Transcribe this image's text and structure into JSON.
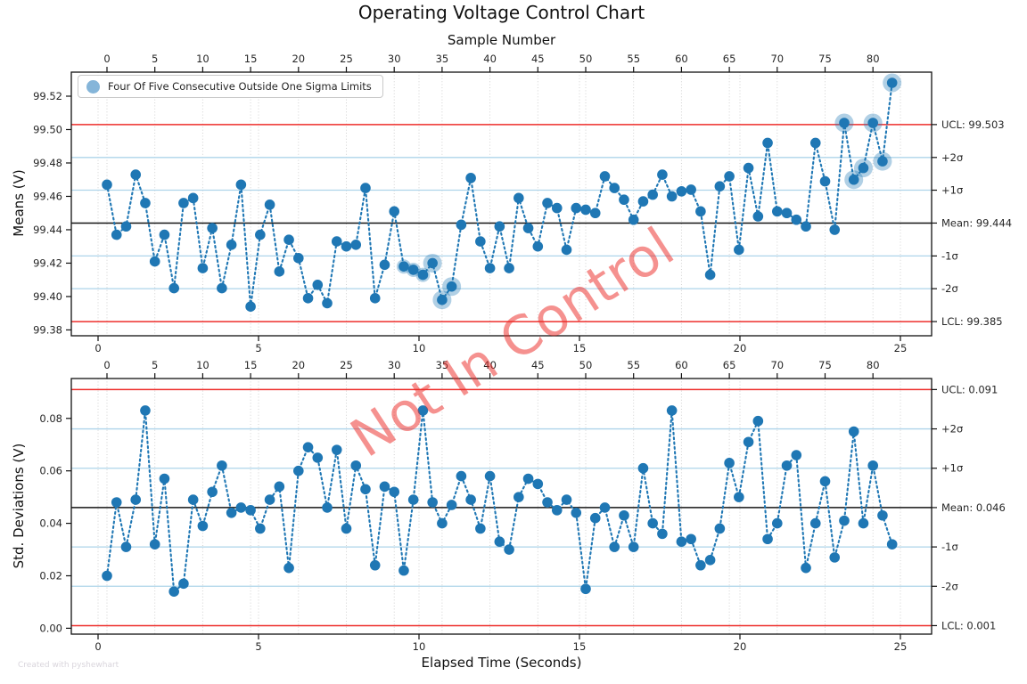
{
  "title": "Operating Voltage Control Chart",
  "top_axis_label": "Sample Number",
  "bottom_axis_label": "Elapsed Time (Seconds)",
  "watermark_text": "Not In Control",
  "credit_text": "Created with pyshewhart",
  "legend_label": "Four Of Five Consecutive Outside One Sigma Limits",
  "colors": {
    "marker": "#1f77b4",
    "halo": "rgba(31,119,180,0.35)",
    "control_line": "#ee2e2b",
    "sigma_line": "#aed4ea",
    "mean_line": "#141414",
    "grid_line": "#cdcdcd",
    "watermark": "rgba(235,45,40,0.52)",
    "legend_swatch": "#85b5d9"
  },
  "axes": {
    "sample_ticks": [
      0,
      5,
      10,
      15,
      20,
      25,
      30,
      35,
      40,
      45,
      50,
      55,
      60,
      65,
      70,
      75,
      80
    ],
    "time_ticks": [
      0,
      5,
      10,
      15,
      20,
      25
    ]
  },
  "chart_data": [
    {
      "type": "line",
      "name": "means",
      "ylabel": "Means (V)",
      "ylim": [
        99.3765,
        99.5344
      ],
      "yticks": [
        {
          "v": 99.38,
          "label": "99.38"
        },
        {
          "v": 99.4,
          "label": "99.40"
        },
        {
          "v": 99.42,
          "label": "99.42"
        },
        {
          "v": 99.44,
          "label": "99.44"
        },
        {
          "v": 99.46,
          "label": "99.46"
        },
        {
          "v": 99.48,
          "label": "99.48"
        },
        {
          "v": 99.5,
          "label": "99.50"
        },
        {
          "v": 99.52,
          "label": "99.52"
        }
      ],
      "lines": [
        {
          "label": "UCL: 99.503",
          "value": 99.503,
          "kind": "control"
        },
        {
          "label": "+2σ",
          "value": 99.4833,
          "kind": "sigma"
        },
        {
          "label": "+1σ",
          "value": 99.4637,
          "kind": "sigma"
        },
        {
          "label": "Mean: 99.444",
          "value": 99.444,
          "kind": "mean"
        },
        {
          "label": "-1σ",
          "value": 99.4243,
          "kind": "sigma"
        },
        {
          "label": "-2σ",
          "value": 99.4047,
          "kind": "sigma"
        },
        {
          "label": "LCL: 99.385",
          "value": 99.385,
          "kind": "control"
        }
      ],
      "values": [
        99.467,
        99.437,
        99.442,
        99.473,
        99.456,
        99.421,
        99.437,
        99.405,
        99.456,
        99.459,
        99.417,
        99.441,
        99.405,
        99.431,
        99.467,
        99.394,
        99.437,
        99.455,
        99.415,
        99.434,
        99.423,
        99.399,
        99.407,
        99.396,
        99.433,
        99.43,
        99.431,
        99.465,
        99.399,
        99.419,
        99.451,
        99.418,
        99.416,
        99.413,
        99.42,
        99.398,
        99.406,
        99.443,
        99.471,
        99.433,
        99.417,
        99.442,
        99.417,
        99.459,
        99.441,
        99.43,
        99.456,
        99.453,
        99.428,
        99.453,
        99.452,
        99.45,
        99.472,
        99.465,
        99.458,
        99.446,
        99.457,
        99.461,
        99.473,
        99.46,
        99.463,
        99.464,
        99.451,
        99.413,
        99.466,
        99.472,
        99.428,
        99.477,
        99.448,
        99.492,
        99.451,
        99.45,
        99.446,
        99.442,
        99.492,
        99.469,
        99.44,
        99.504,
        99.47,
        99.477,
        99.504,
        99.481,
        99.528
      ],
      "violations_small": [
        31,
        32,
        33
      ],
      "violations_large": [
        34,
        35,
        36,
        77,
        78,
        79,
        80,
        81,
        82
      ]
    },
    {
      "type": "line",
      "name": "std-deviations",
      "ylabel": "Std. Deviations (V)",
      "ylim": [
        -0.00224,
        0.0952
      ],
      "yticks": [
        {
          "v": 0.0,
          "label": "0.00"
        },
        {
          "v": 0.02,
          "label": "0.02"
        },
        {
          "v": 0.04,
          "label": "0.04"
        },
        {
          "v": 0.06,
          "label": "0.06"
        },
        {
          "v": 0.08,
          "label": "0.08"
        }
      ],
      "lines": [
        {
          "label": "UCL: 0.091",
          "value": 0.091,
          "kind": "control"
        },
        {
          "label": "+2σ",
          "value": 0.076,
          "kind": "sigma"
        },
        {
          "label": "+1σ",
          "value": 0.061,
          "kind": "sigma"
        },
        {
          "label": "Mean: 0.046",
          "value": 0.046,
          "kind": "mean"
        },
        {
          "label": "-1σ",
          "value": 0.031,
          "kind": "sigma"
        },
        {
          "label": "-2σ",
          "value": 0.016,
          "kind": "sigma"
        },
        {
          "label": "LCL: 0.001",
          "value": 0.001,
          "kind": "control"
        }
      ],
      "values": [
        0.02,
        0.048,
        0.031,
        0.049,
        0.083,
        0.032,
        0.057,
        0.014,
        0.017,
        0.049,
        0.039,
        0.052,
        0.062,
        0.044,
        0.046,
        0.045,
        0.038,
        0.049,
        0.054,
        0.023,
        0.06,
        0.069,
        0.065,
        0.046,
        0.068,
        0.038,
        0.062,
        0.053,
        0.024,
        0.054,
        0.052,
        0.022,
        0.049,
        0.083,
        0.048,
        0.04,
        0.047,
        0.058,
        0.049,
        0.038,
        0.058,
        0.033,
        0.03,
        0.05,
        0.057,
        0.055,
        0.048,
        0.045,
        0.049,
        0.044,
        0.015,
        0.042,
        0.046,
        0.031,
        0.043,
        0.031,
        0.061,
        0.04,
        0.036,
        0.083,
        0.033,
        0.034,
        0.024,
        0.026,
        0.038,
        0.063,
        0.05,
        0.071,
        0.079,
        0.034,
        0.04,
        0.062,
        0.066,
        0.023,
        0.04,
        0.056,
        0.027,
        0.041,
        0.075,
        0.04,
        0.062,
        0.043,
        0.032
      ],
      "violations_small": [],
      "violations_large": []
    }
  ]
}
